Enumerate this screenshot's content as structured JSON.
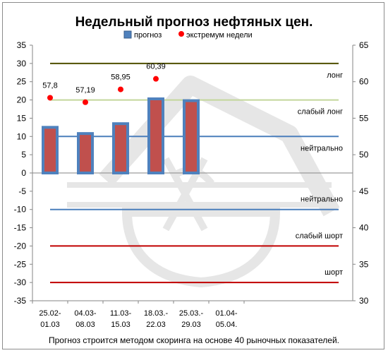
{
  "chart_data": {
    "type": "bar",
    "title": "Недельный прогноз нефтяных цен.",
    "footer": "Прогноз строится методом скоринга на основе 40 рыночных показателей.",
    "legend": {
      "placement": "top",
      "items": [
        "прогноз",
        "экстремум недели"
      ]
    },
    "categories": [
      "25.02-\n01.03",
      "04.03-\n08.03",
      "11.03-\n15.03",
      "18.03.-\n22.03",
      "25.03.-\n29.03",
      "01.04-\n05.04."
    ],
    "series": [
      {
        "name": "прогноз",
        "axis": "left",
        "values": [
          12.5,
          10.8,
          13.5,
          20.3,
          19.8,
          null
        ],
        "color": "#c0504d",
        "border": "#4f81bd"
      },
      {
        "name": "экстремум недели",
        "axis": "right",
        "values": [
          57.8,
          57.19,
          58.95,
          60.39,
          null,
          null
        ],
        "labels": [
          "57,8",
          "57,19",
          "58,95",
          "60,39",
          "",
          ""
        ],
        "color": "#ff0000"
      }
    ],
    "levels": [
      {
        "label": "лонг",
        "y": 30,
        "color": "#4f4f00"
      },
      {
        "label": "слабый лонг",
        "y": 20,
        "color": "#c3d69b"
      },
      {
        "label": "нейтрально",
        "y": 10,
        "color": "#4a7ebb"
      },
      {
        "label": "нейтрально",
        "y": -10,
        "color": "#4a7ebb"
      },
      {
        "label": "слабый шорт",
        "y": -20,
        "color": "#c00000"
      },
      {
        "label": "шорт",
        "y": -30,
        "color": "#c00000"
      }
    ],
    "y_left": {
      "min": -35,
      "max": 35,
      "step": 5
    },
    "y_right": {
      "min": 30,
      "max": 65,
      "step": 5
    },
    "grid": false,
    "colors": {
      "bar_fill": "#c0504d",
      "bar_border": "#4f81bd",
      "marker": "#ff0000",
      "axis": "#868686",
      "watermark": "#e6e6e6"
    }
  }
}
